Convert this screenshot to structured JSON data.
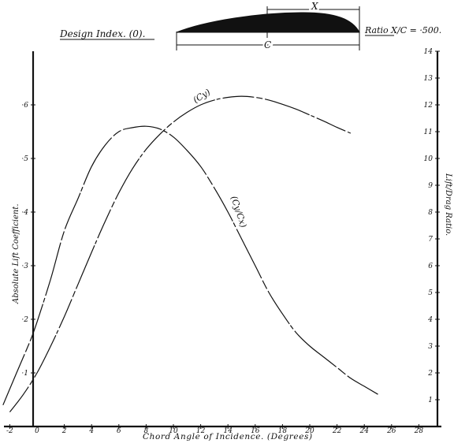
{
  "header": {
    "design_index": "Design Index. (0).",
    "ratio_label": "Ratio X/C = ·500.",
    "section_dim_x": "X",
    "section_dim_c": "C"
  },
  "chart_data": {
    "type": "line",
    "title": "",
    "xlabel": "Chord Angle of Incidence. (Degrees)",
    "ylabel": "Absolute Lift Coefficient.",
    "y2label": "Lift/Drag Ratio.",
    "xlim": [
      -2,
      30
    ],
    "ylim": [
      0,
      0.7
    ],
    "y2lim": [
      0,
      14
    ],
    "x_ticks": [
      "-2",
      "0",
      "2",
      "4",
      "6",
      "8",
      "10",
      "12",
      "14",
      "16",
      "18",
      "20",
      "22",
      "24",
      "26",
      "28"
    ],
    "y_ticks": [
      "·1",
      "·2",
      "·3",
      "·4",
      "·5",
      "·6"
    ],
    "y2_ticks": [
      "1",
      "2",
      "3",
      "4",
      "5",
      "6",
      "7",
      "8",
      "9",
      "10",
      "11",
      "12",
      "13",
      "14"
    ],
    "grid": false,
    "series": [
      {
        "name": "(Cy)",
        "axis": "left",
        "x": [
          -2,
          -1,
          0,
          1,
          2,
          3,
          4,
          5,
          6,
          7,
          8,
          9,
          10,
          11,
          12,
          13,
          14,
          15,
          16,
          17,
          18,
          19,
          20,
          21,
          22,
          23
        ],
        "y": [
          0.027,
          0.06,
          0.1,
          0.15,
          0.205,
          0.265,
          0.325,
          0.383,
          0.436,
          0.481,
          0.517,
          0.545,
          0.568,
          0.586,
          0.6,
          0.609,
          0.614,
          0.616,
          0.614,
          0.609,
          0.601,
          0.592,
          0.581,
          0.57,
          0.558,
          0.547
        ]
      },
      {
        "name": "(Cy/Cx)",
        "axis": "right",
        "x": [
          -2.5,
          -1.5,
          -0.5,
          0,
          1,
          2,
          3,
          4,
          5,
          6,
          7,
          8,
          9,
          10,
          11,
          12,
          13,
          14,
          15,
          16,
          17,
          18,
          19,
          20,
          21,
          22,
          23,
          24,
          25
        ],
        "y": [
          0.8,
          2.0,
          3.2,
          3.9,
          5.5,
          7.3,
          8.5,
          9.7,
          10.5,
          11.0,
          11.15,
          11.2,
          11.1,
          10.8,
          10.3,
          9.7,
          8.9,
          8.0,
          7.0,
          6.0,
          5.0,
          4.2,
          3.5,
          3.0,
          2.6,
          2.2,
          1.8,
          1.5,
          1.2
        ]
      }
    ]
  }
}
